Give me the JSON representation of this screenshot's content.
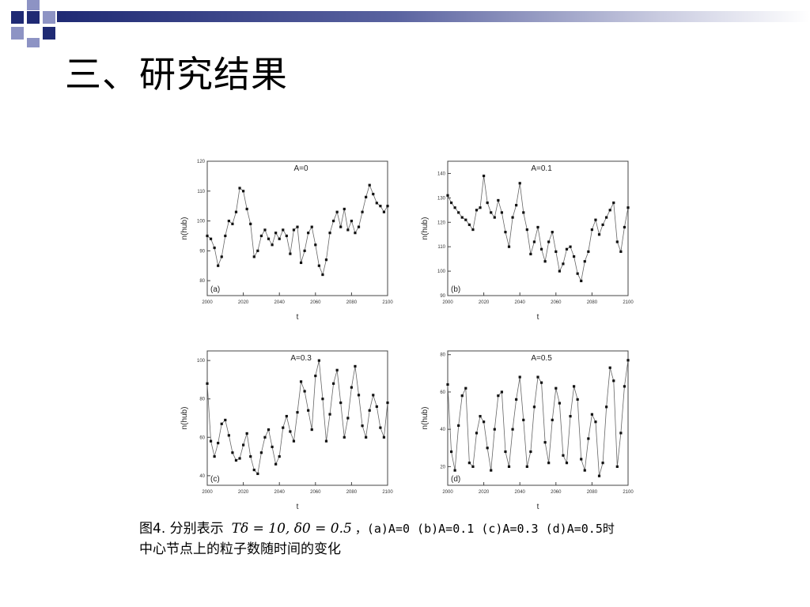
{
  "slide": {
    "title": "三、研究结果",
    "colors": {
      "navy": "#1f2a74",
      "lavender": "#8d93c4",
      "grey": "#9a9a9a"
    }
  },
  "caption": {
    "part1": "图4. 分别表示",
    "formula": "Tδ = 10, δ0 = 0.5",
    "part2": "，(a)A=0 (b)A=0.1 (c)A=0.3 (d)A=0.5时",
    "line2": "中心节点上的粒子数随时间的变化"
  },
  "chart_data": [
    {
      "type": "line",
      "panel": "(a)",
      "title": "A=0",
      "xlabel": "t",
      "ylabel": "n(hub)",
      "xlim": [
        2000,
        2100
      ],
      "ylim": [
        75,
        120
      ],
      "xticks": [
        2000,
        2020,
        2040,
        2060,
        2080,
        2100
      ],
      "yticks": [
        80,
        90,
        100,
        110,
        120
      ],
      "series": [
        {
          "x": [
            2000,
            2002,
            2004,
            2006,
            2008,
            2010,
            2012,
            2014,
            2016,
            2018,
            2020,
            2022,
            2024,
            2026,
            2028,
            2030,
            2032,
            2034,
            2036,
            2038,
            2040,
            2042,
            2044,
            2046,
            2048,
            2050,
            2052,
            2054,
            2056,
            2058,
            2060,
            2062,
            2064,
            2066,
            2068,
            2070,
            2072,
            2074,
            2076,
            2078,
            2080,
            2082,
            2084,
            2086,
            2088,
            2090,
            2092,
            2094,
            2096,
            2098,
            2100
          ],
          "y": [
            95,
            94,
            91,
            85,
            88,
            95,
            100,
            99,
            103,
            111,
            110,
            104,
            99,
            88,
            90,
            95,
            97,
            94,
            92,
            96,
            94,
            97,
            95,
            89,
            97,
            98,
            86,
            90,
            96,
            98,
            92,
            85,
            82,
            87,
            96,
            100,
            103,
            98,
            104,
            97,
            100,
            96,
            98,
            103,
            108,
            112,
            109,
            106,
            105,
            103,
            105
          ]
        }
      ]
    },
    {
      "type": "line",
      "panel": "(b)",
      "title": "A=0.1",
      "xlabel": "t",
      "ylabel": "n(hub)",
      "xlim": [
        2000,
        2100
      ],
      "ylim": [
        90,
        145
      ],
      "xticks": [
        2000,
        2020,
        2040,
        2060,
        2080,
        2100
      ],
      "yticks": [
        90,
        100,
        110,
        120,
        130,
        140
      ],
      "series": [
        {
          "x": [
            2000,
            2002,
            2004,
            2006,
            2008,
            2010,
            2012,
            2014,
            2016,
            2018,
            2020,
            2022,
            2024,
            2026,
            2028,
            2030,
            2032,
            2034,
            2036,
            2038,
            2040,
            2042,
            2044,
            2046,
            2048,
            2050,
            2052,
            2054,
            2056,
            2058,
            2060,
            2062,
            2064,
            2066,
            2068,
            2070,
            2072,
            2074,
            2076,
            2078,
            2080,
            2082,
            2084,
            2086,
            2088,
            2090,
            2092,
            2094,
            2096,
            2098,
            2100
          ],
          "y": [
            131,
            128,
            126,
            124,
            122,
            121,
            119,
            117,
            125,
            126,
            139,
            128,
            124,
            122,
            129,
            124,
            116,
            110,
            122,
            127,
            136,
            124,
            117,
            107,
            112,
            118,
            109,
            104,
            112,
            116,
            108,
            100,
            103,
            109,
            110,
            106,
            99,
            96,
            104,
            108,
            117,
            121,
            115,
            119,
            122,
            125,
            128,
            112,
            108,
            118,
            126
          ]
        }
      ]
    },
    {
      "type": "line",
      "panel": "(c)",
      "title": "A=0.3",
      "xlabel": "t",
      "ylabel": "n(hub)",
      "xlim": [
        2000,
        2100
      ],
      "ylim": [
        35,
        105
      ],
      "xticks": [
        2000,
        2020,
        2040,
        2060,
        2080,
        2100
      ],
      "yticks": [
        40,
        60,
        80,
        100
      ],
      "series": [
        {
          "x": [
            2000,
            2002,
            2004,
            2006,
            2008,
            2010,
            2012,
            2014,
            2016,
            2018,
            2020,
            2022,
            2024,
            2026,
            2028,
            2030,
            2032,
            2034,
            2036,
            2038,
            2040,
            2042,
            2044,
            2046,
            2048,
            2050,
            2052,
            2054,
            2056,
            2058,
            2060,
            2062,
            2064,
            2066,
            2068,
            2070,
            2072,
            2074,
            2076,
            2078,
            2080,
            2082,
            2084,
            2086,
            2088,
            2090,
            2092,
            2094,
            2096,
            2098,
            2100
          ],
          "y": [
            88,
            58,
            50,
            57,
            67,
            69,
            61,
            52,
            48,
            49,
            56,
            62,
            50,
            43,
            41,
            52,
            60,
            64,
            55,
            46,
            50,
            65,
            71,
            63,
            58,
            73,
            89,
            84,
            74,
            64,
            92,
            100,
            80,
            58,
            72,
            88,
            95,
            78,
            60,
            70,
            86,
            97,
            82,
            66,
            60,
            74,
            82,
            76,
            65,
            60,
            78
          ]
        }
      ]
    },
    {
      "type": "line",
      "panel": "(d)",
      "title": "A=0.5",
      "xlabel": "t",
      "ylabel": "n(hub)",
      "xlim": [
        2000,
        2100
      ],
      "ylim": [
        10,
        82
      ],
      "xticks": [
        2000,
        2020,
        2040,
        2060,
        2080,
        2100
      ],
      "yticks": [
        20,
        40,
        60,
        80
      ],
      "series": [
        {
          "x": [
            2000,
            2002,
            2004,
            2006,
            2008,
            2010,
            2012,
            2014,
            2016,
            2018,
            2020,
            2022,
            2024,
            2026,
            2028,
            2030,
            2032,
            2034,
            2036,
            2038,
            2040,
            2042,
            2044,
            2046,
            2048,
            2050,
            2052,
            2054,
            2056,
            2058,
            2060,
            2062,
            2064,
            2066,
            2068,
            2070,
            2072,
            2074,
            2076,
            2078,
            2080,
            2082,
            2084,
            2086,
            2088,
            2090,
            2092,
            2094,
            2096,
            2098,
            2100
          ],
          "y": [
            64,
            28,
            18,
            42,
            58,
            62,
            22,
            20,
            38,
            47,
            44,
            30,
            18,
            40,
            58,
            60,
            28,
            20,
            40,
            56,
            68,
            45,
            20,
            28,
            52,
            68,
            65,
            33,
            22,
            45,
            62,
            54,
            26,
            22,
            47,
            63,
            56,
            24,
            18,
            35,
            48,
            44,
            15,
            22,
            52,
            73,
            66,
            20,
            38,
            63,
            77
          ]
        }
      ]
    }
  ]
}
